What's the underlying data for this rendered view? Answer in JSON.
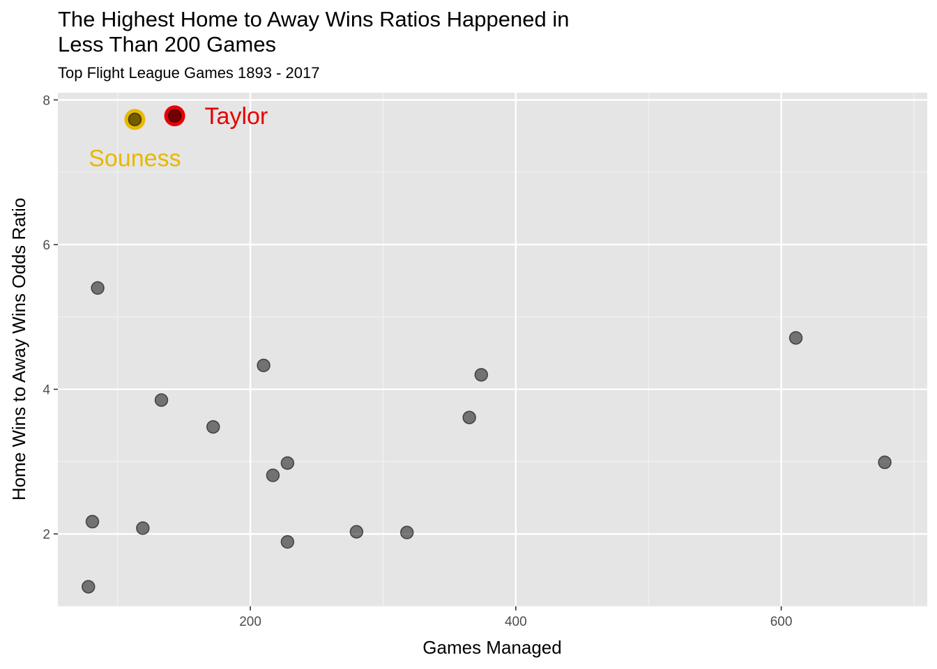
{
  "chart_data": {
    "type": "scatter",
    "title": "The Highest Home to Away Wins Ratios Happened in\nLess Than 200 Games",
    "subtitle": "Top Flight League Games 1893 - 2017",
    "xlabel": "Games Managed",
    "ylabel": "Home Wins to Away Wins Odds Ratio",
    "xlim": [
      55,
      710
    ],
    "ylim": [
      1.0,
      8.1
    ],
    "x_ticks": [
      200,
      400,
      600
    ],
    "y_ticks": [
      2,
      4,
      6,
      8
    ],
    "grid": true,
    "points": [
      {
        "x": 85,
        "y": 5.4
      },
      {
        "x": 81,
        "y": 2.17
      },
      {
        "x": 78,
        "y": 1.27
      },
      {
        "x": 119,
        "y": 2.08
      },
      {
        "x": 133,
        "y": 3.85
      },
      {
        "x": 172,
        "y": 3.48
      },
      {
        "x": 210,
        "y": 4.33
      },
      {
        "x": 217,
        "y": 2.81
      },
      {
        "x": 228,
        "y": 2.98
      },
      {
        "x": 228,
        "y": 1.89
      },
      {
        "x": 280,
        "y": 2.03
      },
      {
        "x": 318,
        "y": 2.02
      },
      {
        "x": 365,
        "y": 3.61
      },
      {
        "x": 374,
        "y": 4.2
      },
      {
        "x": 611,
        "y": 4.71
      },
      {
        "x": 678,
        "y": 2.99
      }
    ],
    "highlights": [
      {
        "label": "Souness",
        "x": 113,
        "y": 7.73,
        "color": "#E6B800"
      },
      {
        "label": "Taylor",
        "x": 143,
        "y": 7.78,
        "color": "#E60000"
      }
    ],
    "point_color": "#000000"
  }
}
